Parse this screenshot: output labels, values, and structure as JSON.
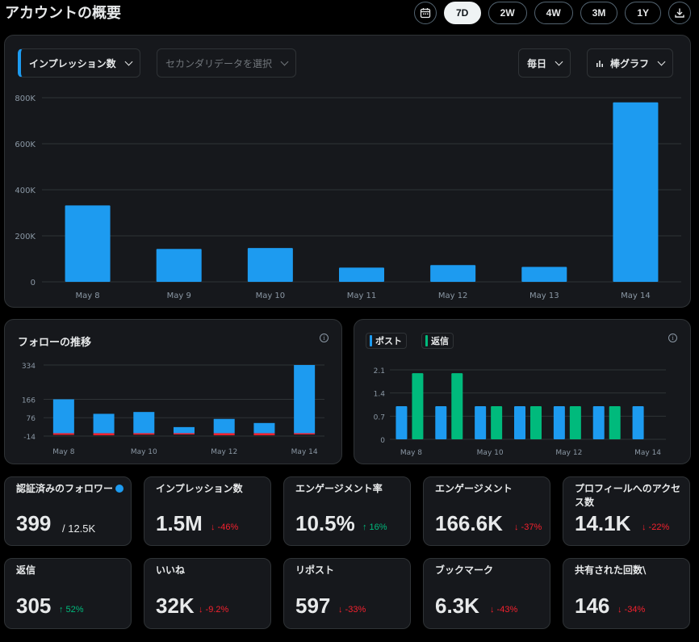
{
  "page": {
    "title": "アカウントの概要"
  },
  "range": {
    "buttons": [
      "7D",
      "2W",
      "4W",
      "3M",
      "1Y"
    ],
    "active": "7D"
  },
  "main_chart": {
    "primary_metric": "インプレッション数",
    "secondary_placeholder": "セカンダリデータを選択",
    "interval": "毎日",
    "chart_type": "棒グラフ"
  },
  "follow_chart": {
    "title": "フォローの推移"
  },
  "posts_chart": {
    "legend": [
      "ポスト",
      "返信"
    ]
  },
  "colors": {
    "accent": "#1d9bf0",
    "reply": "#00ba7c",
    "negative": "#f4212e"
  },
  "chart_data": [
    {
      "type": "bar",
      "categories": [
        "May 8",
        "May 9",
        "May 10",
        "May 11",
        "May 12",
        "May 13",
        "May 14"
      ],
      "values": [
        332000,
        143000,
        147000,
        62000,
        73000,
        65000,
        780000
      ],
      "ylim": [
        0,
        800000
      ],
      "yticks": [
        "800K",
        "600K",
        "400K",
        "200K",
        "0"
      ],
      "grid": true
    },
    {
      "type": "bar",
      "title": "フォローの推移",
      "categories": [
        "May 8",
        "May 9",
        "May 10",
        "May 11",
        "May 12",
        "May 13",
        "May 14"
      ],
      "xtick_labels": [
        "May 8",
        "May 10",
        "May 12",
        "May 14"
      ],
      "series": [
        {
          "values": [
            166,
            95,
            104,
            30,
            70,
            50,
            334
          ]
        },
        {
          "values": [
            -8,
            -10,
            -7,
            -6,
            -10,
            -10,
            -6
          ]
        }
      ],
      "ylim": [
        -14,
        334
      ],
      "yticks": [
        "334",
        "166",
        "76",
        "-14"
      ]
    },
    {
      "type": "bar",
      "categories": [
        "May 8",
        "May 9",
        "May 10",
        "May 11",
        "May 12",
        "May 13",
        "May 14"
      ],
      "xtick_labels": [
        "May 8",
        "May 10",
        "May 12",
        "May 14"
      ],
      "series": [
        {
          "name": "ポスト",
          "values": [
            1,
            1,
            1,
            1,
            1,
            1,
            1
          ]
        },
        {
          "name": "返信",
          "values": [
            2,
            2,
            1,
            1,
            1,
            1,
            0
          ]
        }
      ],
      "ylim": [
        0,
        2.1
      ],
      "yticks": [
        "2.1",
        "1.4",
        "0.7",
        "0"
      ]
    }
  ],
  "metrics": [
    {
      "label": "認証済みのフォロワー",
      "value": "399",
      "sub": "/ 12.5K",
      "verified": true
    },
    {
      "label": "インプレッション数",
      "value": "1.5M",
      "change": "↓ -46%",
      "dir": "down"
    },
    {
      "label": "エンゲージメント率",
      "value": "10.5%",
      "change": "↑ 16%",
      "dir": "up"
    },
    {
      "label": "エンゲージメント",
      "value": "166.6K",
      "change": "↓ -37%",
      "dir": "down"
    },
    {
      "label": "プロフィールへのアクセス数",
      "value": "14.1K",
      "change": "↓ -22%",
      "dir": "down"
    },
    {
      "label": "返信",
      "value": "305",
      "change": "↑ 52%",
      "dir": "up"
    },
    {
      "label": "いいね",
      "value": "32K",
      "change": "↓ -9.2%",
      "dir": "down"
    },
    {
      "label": "リポスト",
      "value": "597",
      "change": "↓ -33%",
      "dir": "down"
    },
    {
      "label": "ブックマーク",
      "value": "6.3K",
      "change": "↓ -43%",
      "dir": "down"
    },
    {
      "label": "共有された回数\\",
      "value": "146",
      "change": "↓ -34%",
      "dir": "down"
    }
  ]
}
